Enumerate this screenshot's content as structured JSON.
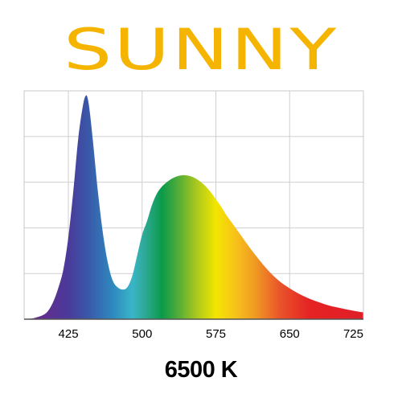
{
  "brand": {
    "title": "SUNNY",
    "color": "#f4b400"
  },
  "cct_label": "6500 K",
  "chart_data": {
    "type": "area",
    "title": "",
    "xlabel": "",
    "ylabel": "",
    "xlim": [
      380,
      725
    ],
    "ylim": [
      0,
      1
    ],
    "grid": true,
    "x_ticks": [
      425,
      500,
      575,
      650,
      725
    ],
    "x_tick_labels": [
      "425",
      "500",
      "575",
      "650",
      "725"
    ],
    "series": [
      {
        "x": [
          380,
          390,
          400,
          405,
          410,
          415,
          420,
          425,
          430,
          435,
          440,
          443,
          445,
          447,
          450,
          455,
          460,
          465,
          470,
          475,
          480,
          485,
          490,
          495,
          500,
          505,
          510,
          515,
          520,
          525,
          530,
          535,
          540,
          545,
          550,
          555,
          560,
          565,
          570,
          575,
          580,
          585,
          590,
          595,
          600,
          610,
          620,
          630,
          640,
          650,
          660,
          670,
          680,
          690,
          700,
          710,
          720,
          725
        ],
        "y": [
          0.0,
          0.005,
          0.02,
          0.04,
          0.08,
          0.14,
          0.22,
          0.36,
          0.56,
          0.79,
          0.94,
          0.98,
          0.96,
          0.9,
          0.78,
          0.56,
          0.38,
          0.25,
          0.17,
          0.14,
          0.13,
          0.14,
          0.19,
          0.28,
          0.37,
          0.43,
          0.5,
          0.55,
          0.58,
          0.6,
          0.615,
          0.625,
          0.63,
          0.63,
          0.625,
          0.615,
          0.6,
          0.58,
          0.555,
          0.525,
          0.495,
          0.46,
          0.43,
          0.4,
          0.37,
          0.31,
          0.255,
          0.205,
          0.165,
          0.135,
          0.11,
          0.09,
          0.074,
          0.06,
          0.05,
          0.041,
          0.033,
          0.03
        ]
      }
    ],
    "spectrum_colors": [
      {
        "nm": 390,
        "color": "#6a2a8a"
      },
      {
        "nm": 425,
        "color": "#4a3a9a"
      },
      {
        "nm": 445,
        "color": "#3a58a8"
      },
      {
        "nm": 470,
        "color": "#2e88bf"
      },
      {
        "nm": 490,
        "color": "#3ab5c8"
      },
      {
        "nm": 505,
        "color": "#2aa78c"
      },
      {
        "nm": 520,
        "color": "#0b9a4a"
      },
      {
        "nm": 535,
        "color": "#4aaa3a"
      },
      {
        "nm": 555,
        "color": "#a8c81e"
      },
      {
        "nm": 575,
        "color": "#f3e600"
      },
      {
        "nm": 595,
        "color": "#f7c21a"
      },
      {
        "nm": 615,
        "color": "#f09a23"
      },
      {
        "nm": 640,
        "color": "#e9542a"
      },
      {
        "nm": 670,
        "color": "#e52323"
      },
      {
        "nm": 725,
        "color": "#e01e28"
      }
    ]
  }
}
